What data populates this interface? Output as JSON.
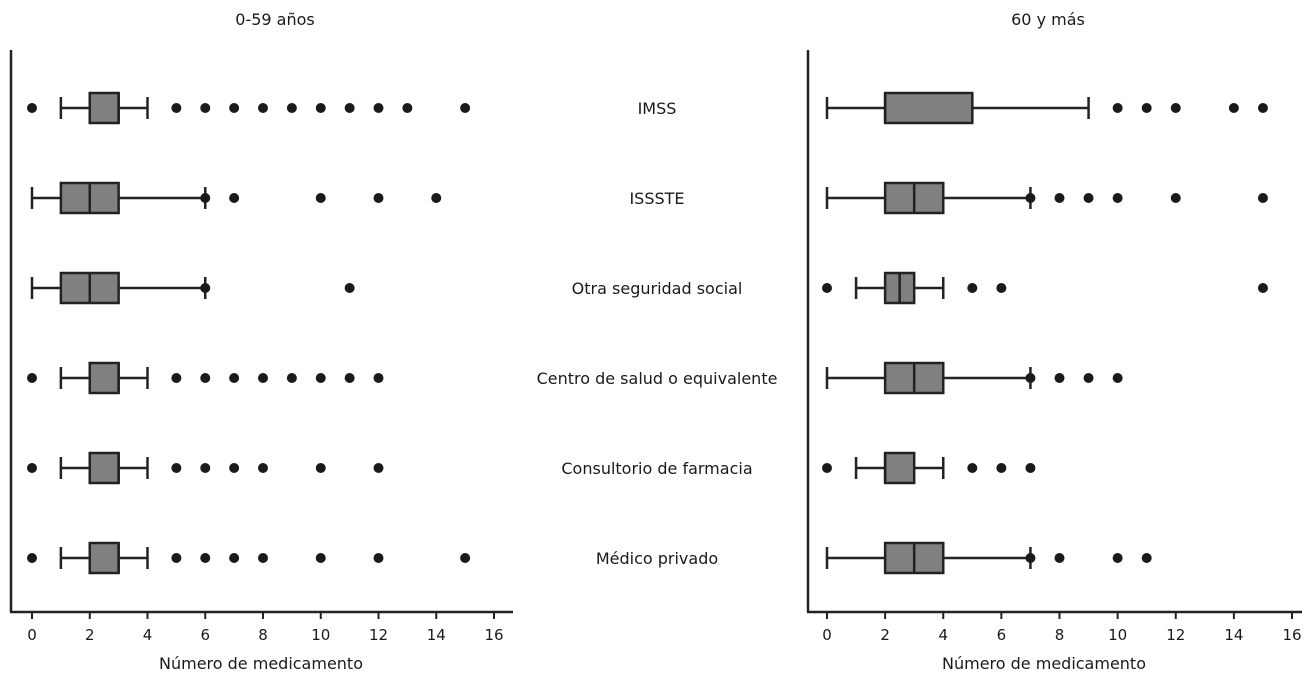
{
  "chart_data": [
    {
      "type": "boxplot",
      "title": "0-59 años",
      "xlabel": "Número de medicamento",
      "ylabel": "",
      "xlim": [
        -0.7,
        16.7
      ],
      "xticks": [
        "0",
        "2",
        "4",
        "6",
        "8",
        "10",
        "12",
        "14",
        "16"
      ],
      "grid": false,
      "categories": [
        "IMSS",
        "ISSSTE",
        "Otra seguridad social",
        "Centro de salud o equivalente",
        "Consultorio de farmacia",
        "Médico privado"
      ],
      "boxes": [
        {
          "whisker_low": 1,
          "q1": 2,
          "median": 3,
          "q3": 3,
          "whisker_high": 4,
          "outliers": [
            0,
            5,
            6,
            7,
            8,
            9,
            10,
            11,
            12,
            13,
            15
          ]
        },
        {
          "whisker_low": 0,
          "q1": 1,
          "median": 2,
          "q3": 3,
          "whisker_high": 6,
          "outliers": [
            6,
            7,
            10,
            12,
            14
          ]
        },
        {
          "whisker_low": 0,
          "q1": 1,
          "median": 2,
          "q3": 3,
          "whisker_high": 6,
          "outliers": [
            6,
            11
          ]
        },
        {
          "whisker_low": 1,
          "q1": 2,
          "median": 3,
          "q3": 3,
          "whisker_high": 4,
          "outliers": [
            0,
            5,
            6,
            7,
            8,
            9,
            10,
            11,
            12
          ]
        },
        {
          "whisker_low": 1,
          "q1": 2,
          "median": 3,
          "q3": 3,
          "whisker_high": 4,
          "outliers": [
            0,
            5,
            6,
            7,
            8,
            10,
            12
          ]
        },
        {
          "whisker_low": 1,
          "q1": 2,
          "median": 3,
          "q3": 3,
          "whisker_high": 4,
          "outliers": [
            0,
            5,
            6,
            7,
            8,
            10,
            12,
            15
          ]
        }
      ]
    },
    {
      "type": "boxplot",
      "title": "60 y más",
      "xlabel": "Número de medicamento",
      "ylabel": "",
      "xlim": [
        -0.7,
        16.7
      ],
      "xticks": [
        "0",
        "2",
        "4",
        "6",
        "8",
        "10",
        "12",
        "14",
        "16"
      ],
      "grid": false,
      "categories": [
        "IMSS",
        "ISSSTE",
        "Otra seguridad social",
        "Centro de salud o equivalente",
        "Consultorio de farmacia",
        "Médico privado"
      ],
      "boxes": [
        {
          "whisker_low": 0,
          "q1": 2,
          "median": 2,
          "q3": 5,
          "whisker_high": 9,
          "outliers": [
            10,
            11,
            12,
            14,
            15
          ]
        },
        {
          "whisker_low": 0,
          "q1": 2,
          "median": 3,
          "q3": 4,
          "whisker_high": 7,
          "outliers": [
            7,
            8,
            9,
            10,
            12,
            15
          ]
        },
        {
          "whisker_low": 1,
          "q1": 2,
          "median": 2.5,
          "q3": 3,
          "whisker_high": 4,
          "outliers": [
            0,
            5,
            6,
            15
          ]
        },
        {
          "whisker_low": 0,
          "q1": 2,
          "median": 3,
          "q3": 4,
          "whisker_high": 7,
          "outliers": [
            7,
            8,
            9,
            10
          ]
        },
        {
          "whisker_low": 1,
          "q1": 2,
          "median": 2,
          "q3": 3,
          "whisker_high": 4,
          "outliers": [
            0,
            5,
            6,
            7
          ]
        },
        {
          "whisker_low": 0,
          "q1": 2,
          "median": 3,
          "q3": 4,
          "whisker_high": 7,
          "outliers": [
            7,
            8,
            10,
            11
          ]
        }
      ]
    }
  ],
  "colors": {
    "box_fill": "#808080",
    "stroke": "#222222",
    "outlier": "#1a1a1a"
  }
}
